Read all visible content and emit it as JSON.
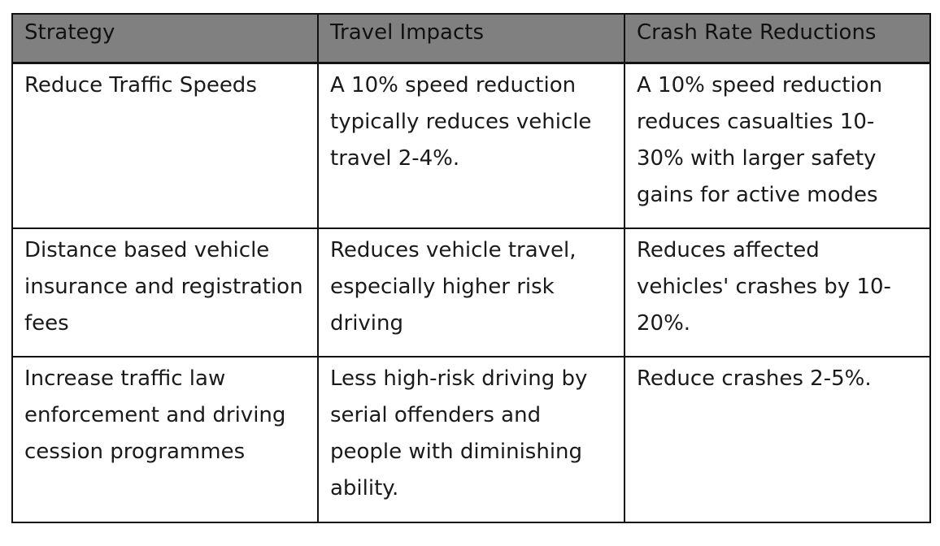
{
  "table": {
    "headers": [
      "Strategy",
      "Travel Impacts",
      "Crash Rate Reductions"
    ],
    "rows": [
      {
        "strategy": "Reduce Traffic Speeds",
        "travel_impacts": "A 10% speed reduction typically reduces vehicle travel 2-4%.",
        "crash_rate_reductions": "A 10% speed reduction reduces casualties 10-30% with larger safety gains for active modes"
      },
      {
        "strategy": "Distance based vehicle insurance and registration fees",
        "travel_impacts": "Reduces vehicle travel, especially higher risk driving",
        "crash_rate_reductions": "Reduces affected vehicles' crashes by 10-20%."
      },
      {
        "strategy": "Increase traffic law enforcement and driving cession programmes",
        "travel_impacts": "Less high-risk driving by serial offenders and people with diminishing ability.",
        "crash_rate_reductions": "Reduce crashes 2-5%."
      }
    ]
  }
}
